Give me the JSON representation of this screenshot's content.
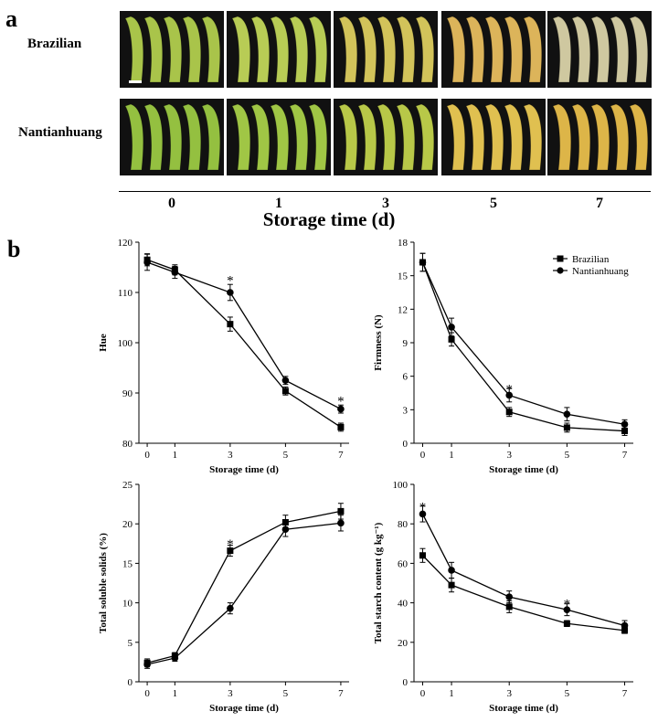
{
  "panel_a": {
    "letter": "a",
    "rows": [
      {
        "name": "Brazilian",
        "peel_color": [
          "#a9c44a",
          "#b8cc55",
          "#d2c35a",
          "#dcb45a",
          "#cfc8a0"
        ],
        "scale_bar": true
      },
      {
        "name": "Nantianhuang",
        "peel_color": [
          "#94c040",
          "#a0c645",
          "#b8c848",
          "#e0c050",
          "#ddb548"
        ],
        "scale_bar": false
      }
    ],
    "days": [
      "0",
      "1",
      "3",
      "5",
      "7"
    ],
    "axis_title": "Storage time (d)"
  },
  "panel_b": {
    "letter": "b"
  },
  "chart_data": [
    {
      "type": "line",
      "ylabel": "Hue",
      "xlabel": "Storage  time  (d)",
      "x": [
        0,
        1,
        3,
        5,
        7
      ],
      "xticks": [
        "0",
        "1",
        "3",
        "5",
        "7"
      ],
      "ylim": [
        80,
        120
      ],
      "yticks": [
        "80",
        "90",
        "100",
        "110",
        "120"
      ],
      "series": [
        {
          "marker": "square",
          "values": [
            116.5,
            114.5,
            103.7,
            90.4,
            83.2
          ],
          "err": [
            1.2,
            1.0,
            1.4,
            0.8,
            0.8
          ]
        },
        {
          "marker": "circle",
          "values": [
            116.0,
            114.0,
            110.0,
            92.5,
            86.8
          ],
          "err": [
            1.6,
            1.2,
            1.6,
            0.8,
            0.8
          ]
        }
      ],
      "significance": [
        {
          "x": 3,
          "y": 113.0,
          "text": "*"
        },
        {
          "x": 7,
          "y": 89.0,
          "text": "*"
        }
      ]
    },
    {
      "type": "line",
      "ylabel": "Firmness (N)",
      "xlabel": "Storage  time  (d)",
      "x": [
        0,
        1,
        3,
        5,
        7
      ],
      "xticks": [
        "0",
        "1",
        "3",
        "5",
        "7"
      ],
      "ylim": [
        0,
        18
      ],
      "yticks": [
        "0",
        "3",
        "6",
        "9",
        "12",
        "15",
        "18"
      ],
      "series": [
        {
          "name": "Brazilian",
          "marker": "square",
          "values": [
            16.2,
            9.3,
            2.8,
            1.4,
            1.1
          ],
          "err": [
            0.8,
            0.6,
            0.4,
            0.4,
            0.4
          ]
        },
        {
          "name": "Nantianhuang",
          "marker": "circle",
          "values": [
            16.2,
            10.4,
            4.3,
            2.6,
            1.7
          ],
          "err": [
            0.8,
            0.8,
            0.6,
            0.6,
            0.4
          ]
        }
      ],
      "legend": "top-right",
      "significance": [
        {
          "x": 3,
          "y": 5.1,
          "text": "*"
        }
      ]
    },
    {
      "type": "line",
      "ylabel": "Total soluble solids (%)",
      "xlabel": "Storage  time  (d)",
      "x": [
        0,
        1,
        3,
        5,
        7
      ],
      "xticks": [
        "0",
        "1",
        "3",
        "5",
        "7"
      ],
      "ylim": [
        0,
        25
      ],
      "yticks": [
        "0",
        "5",
        "10",
        "15",
        "20",
        "25"
      ],
      "series": [
        {
          "marker": "square",
          "values": [
            2.4,
            3.3,
            16.6,
            20.2,
            21.6
          ],
          "err": [
            0.5,
            0.4,
            0.7,
            0.9,
            1.0
          ]
        },
        {
          "marker": "circle",
          "values": [
            2.2,
            3.0,
            9.3,
            19.3,
            20.1
          ],
          "err": [
            0.5,
            0.4,
            0.7,
            0.9,
            1.0
          ]
        }
      ],
      "significance": [
        {
          "x": 3,
          "y": 17.8,
          "text": "*"
        }
      ]
    },
    {
      "type": "line",
      "ylabel": "Total starch content (g kg⁻¹)",
      "xlabel": "Storage  time  (d)",
      "x": [
        0,
        1,
        3,
        5,
        7
      ],
      "xticks": [
        "0",
        "1",
        "3",
        "5",
        "7"
      ],
      "ylim": [
        0,
        100
      ],
      "yticks": [
        "0",
        "20",
        "40",
        "60",
        "80",
        "100"
      ],
      "series": [
        {
          "marker": "square",
          "values": [
            64.0,
            49.0,
            38.0,
            29.5,
            26.0
          ],
          "err": [
            3.5,
            3.5,
            3.0,
            1.5,
            1.5
          ]
        },
        {
          "marker": "circle",
          "values": [
            85.0,
            56.5,
            43.0,
            36.5,
            28.5
          ],
          "err": [
            4.0,
            4.0,
            3.0,
            3.0,
            2.5
          ]
        }
      ],
      "significance": [
        {
          "x": 0,
          "y": 90.0,
          "text": "*"
        },
        {
          "x": 5,
          "y": 41.0,
          "text": "*"
        }
      ]
    }
  ]
}
